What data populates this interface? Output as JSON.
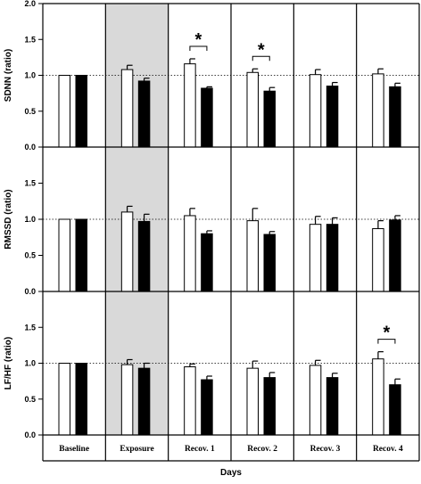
{
  "chart_data": {
    "type": "bar",
    "xlabel": "Days",
    "days": [
      "Baseline",
      "Exposure",
      "Recov. 1",
      "Recov. 2",
      "Recov. 3",
      "Recov. 4"
    ],
    "shaded_day": "Exposure",
    "reference_line": 1.0,
    "series_styles": [
      {
        "fill": "#ffffff",
        "stroke": "#000000"
      },
      {
        "fill": "#000000",
        "stroke": "#000000"
      }
    ],
    "significance_marker": "*",
    "panels": [
      {
        "ylabel": "SDNN (ratio)",
        "ylim": [
          0,
          2.0
        ],
        "yticks": [
          "0.0",
          "0.5",
          "1.0",
          "1.5",
          "2.0"
        ],
        "values": [
          [
            1.0,
            1.0
          ],
          [
            1.08,
            0.92
          ],
          [
            1.16,
            0.82
          ],
          [
            1.04,
            0.78
          ],
          [
            1.01,
            0.85
          ],
          [
            1.02,
            0.84
          ]
        ],
        "errors": [
          [
            0,
            0
          ],
          [
            0.06,
            0.04
          ],
          [
            0.07,
            0.02
          ],
          [
            0.05,
            0.05
          ],
          [
            0.07,
            0.05
          ],
          [
            0.07,
            0.05
          ]
        ],
        "significant": [
          false,
          false,
          true,
          true,
          false,
          false
        ]
      },
      {
        "ylabel": "RMSSD (ratio)",
        "ylim": [
          0,
          2.0
        ],
        "yticks": [
          "0.0",
          "0.5",
          "1.0",
          "1.5"
        ],
        "values": [
          [
            1.0,
            1.0
          ],
          [
            1.1,
            0.97
          ],
          [
            1.05,
            0.8
          ],
          [
            0.98,
            0.79
          ],
          [
            0.93,
            0.93
          ],
          [
            0.87,
            0.99
          ]
        ],
        "errors": [
          [
            0,
            0
          ],
          [
            0.08,
            0.1
          ],
          [
            0.1,
            0.04
          ],
          [
            0.17,
            0.04
          ],
          [
            0.11,
            0.09
          ],
          [
            0.11,
            0.06
          ]
        ],
        "significant": [
          false,
          false,
          false,
          false,
          false,
          false
        ]
      },
      {
        "ylabel": "LF/HF (ratio)",
        "ylim": [
          0,
          2.0
        ],
        "yticks": [
          "0.0",
          "0.5",
          "1.0",
          "1.5"
        ],
        "values": [
          [
            1.0,
            1.0
          ],
          [
            0.98,
            0.93
          ],
          [
            0.95,
            0.77
          ],
          [
            0.93,
            0.8
          ],
          [
            0.97,
            0.8
          ],
          [
            1.06,
            0.7
          ]
        ],
        "errors": [
          [
            0,
            0
          ],
          [
            0.07,
            0.07
          ],
          [
            0.04,
            0.05
          ],
          [
            0.1,
            0.07
          ],
          [
            0.07,
            0.06
          ],
          [
            0.1,
            0.08
          ]
        ],
        "significant": [
          false,
          false,
          false,
          false,
          false,
          true
        ]
      }
    ]
  }
}
